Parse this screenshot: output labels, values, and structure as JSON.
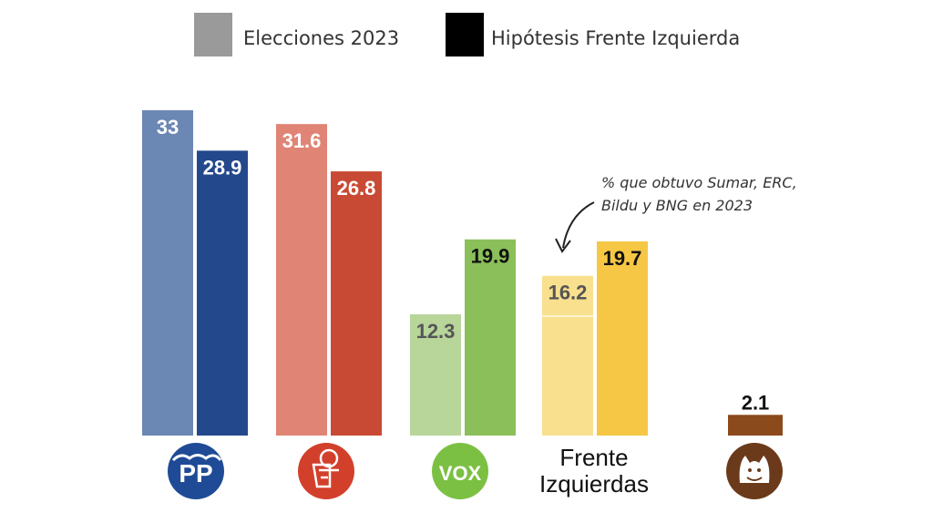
{
  "chart_data": {
    "type": "bar",
    "title": "",
    "xlabel": "",
    "ylabel": "",
    "ylim": [
      0,
      33
    ],
    "legend": {
      "placement": "top-center"
    },
    "series": [
      {
        "name": "Elecciones 2023",
        "color": "#8f8f8f",
        "values": [
          33,
          31.6,
          12.3,
          16.2,
          null
        ]
      },
      {
        "name": "Hipótesis Frente Izquierda",
        "color": "#000000",
        "values": [
          28.9,
          26.8,
          19.9,
          19.7,
          2.1
        ]
      }
    ],
    "value_labels": [
      [
        "33",
        "31.6",
        "12.3",
        "16.2",
        ""
      ],
      [
        "28.9",
        "26.8",
        "19.9",
        "19.7",
        "2.1"
      ]
    ],
    "categories": [
      {
        "id": "pp",
        "logo_text": "PP",
        "colors": [
          "#6b87b4",
          "#23488c"
        ],
        "label_colors": [
          "#ffffff",
          "#ffffff"
        ],
        "logo_bg": "#1f4b96",
        "logo_fg": "#ffffff"
      },
      {
        "id": "psoe",
        "logo_text": "",
        "colors": [
          "#e08475",
          "#c94a34"
        ],
        "label_colors": [
          "#ffffff",
          "#ffffff"
        ],
        "logo_bg": "#d2402b",
        "logo_fg": "#ffffff"
      },
      {
        "id": "vox",
        "logo_text": "VOX",
        "colors": [
          "#b8d59a",
          "#8abf5a"
        ],
        "label_colors": [
          "#555555",
          "#111111"
        ],
        "logo_bg": "#7cc043",
        "logo_fg": "#ffffff"
      },
      {
        "id": "frente",
        "name_lines": [
          "Frente",
          "Izquierdas"
        ],
        "colors": [
          "#f8e08e",
          "#f5c744"
        ],
        "label_colors": [
          "#555555",
          "#111111"
        ]
      },
      {
        "id": "other",
        "logo_text": "",
        "colors": [
          null,
          "#8b4a1c"
        ],
        "label_colors": [
          "#111111",
          "#111111"
        ],
        "logo_bg": "#6b3a1a",
        "logo_fg": "#ffffff"
      }
    ],
    "annotations": [
      {
        "lines": [
          "% que obtuvo Sumar, ERC,",
          "Bildu y BNG en 2023"
        ],
        "target": "frente"
      }
    ]
  },
  "legend_swatch_colors": [
    "#9a9a9a",
    "#000000"
  ]
}
